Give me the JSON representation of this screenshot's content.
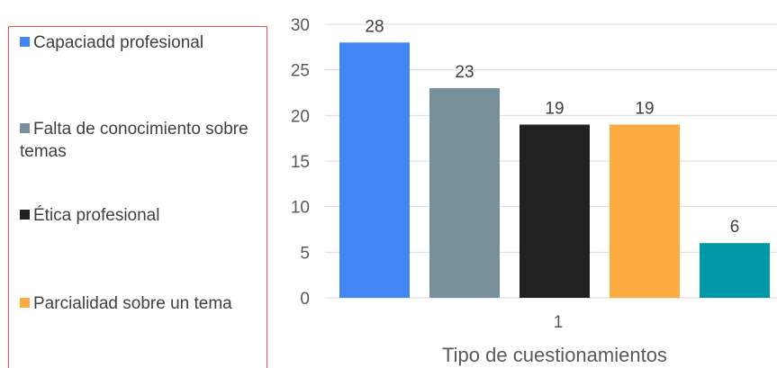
{
  "chart_data": {
    "type": "bar",
    "categories": [
      "1"
    ],
    "series": [
      {
        "name": "Capaciadd profesional",
        "values": [
          28
        ],
        "color": "#4285f4"
      },
      {
        "name": "Falta de conocimiento sobre temas",
        "values": [
          23
        ],
        "color": "#78909c"
      },
      {
        "name": "Ética profesional",
        "values": [
          19
        ],
        "color": "#212121"
      },
      {
        "name": "Parcialidad sobre un tema",
        "values": [
          19
        ],
        "color": "#fbab3f"
      },
      {
        "name": "",
        "values": [
          6
        ],
        "color": "#0097a7"
      }
    ],
    "title": "",
    "xlabel": "Tipo de cuestionamientos",
    "ylabel": "",
    "ylim": [
      0,
      30
    ],
    "yticks": [
      0,
      5,
      10,
      15,
      20,
      25,
      30
    ],
    "grid": true,
    "legend": "left"
  }
}
